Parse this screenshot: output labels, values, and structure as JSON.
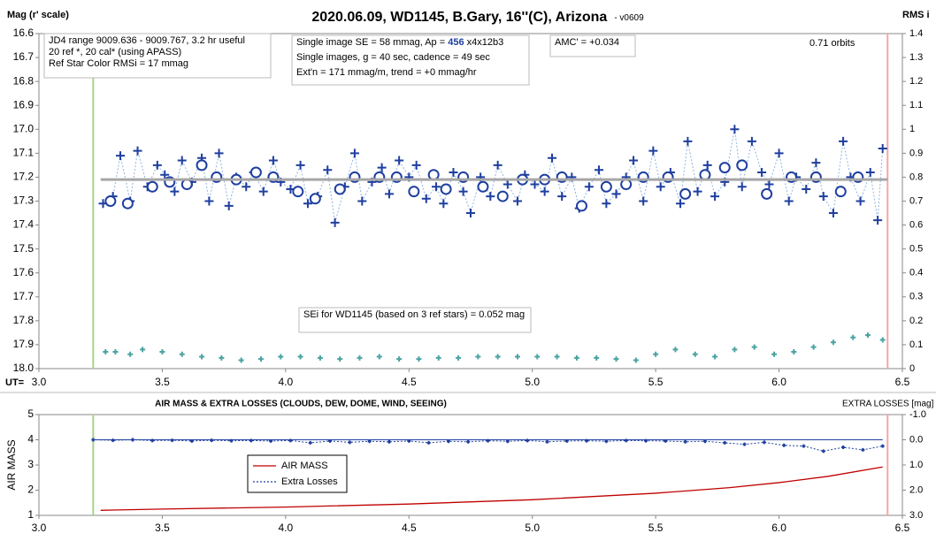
{
  "title": "2020.06.09, WD1145, B.Gary, 16''(C), Arizona",
  "version": "- v0609",
  "chart_data": [
    {
      "type": "scatter",
      "ylabel": "Mag (r' scale)",
      "y2label": "RMS i",
      "xlabel": "UT=",
      "xlim": [
        3.0,
        6.5
      ],
      "xticks": [
        {
          "value": 3.0,
          "label": "3.0"
        },
        {
          "value": 3.5,
          "label": "3.5"
        },
        {
          "value": 4.0,
          "label": "4.0"
        },
        {
          "value": 4.5,
          "label": "4.5"
        },
        {
          "value": 5.0,
          "label": "5.0"
        },
        {
          "value": 5.5,
          "label": "5.5"
        },
        {
          "value": 6.0,
          "label": "6.0"
        },
        {
          "value": 6.5,
          "label": "6.5"
        }
      ],
      "ylim": [
        18.0,
        16.6
      ],
      "yticks": [
        16.6,
        16.7,
        16.8,
        16.9,
        {
          "value": 17.0,
          "label": "17.0"
        },
        17.1,
        17.2,
        17.3,
        17.4,
        17.5,
        17.6,
        17.7,
        17.8,
        17.9,
        {
          "value": 18.0,
          "label": "18.0"
        }
      ],
      "y2lim": [
        0,
        1.4
      ],
      "y2ticks": [
        1.4,
        1.3,
        1.2,
        1.1,
        1,
        0.9,
        0.8,
        0.7,
        0.6,
        0.5,
        0.4,
        0.3,
        0.2,
        0.1,
        0
      ],
      "vlines": [
        {
          "x": 3.22,
          "color": "#a9d18e"
        },
        {
          "x": 6.44,
          "color": "#f4a6a6"
        }
      ],
      "series": [
        {
          "color": "#1f3f9f",
          "marker": "plus",
          "line": "dotted",
          "line_color": "#8fb4e0",
          "x": [
            3.26,
            3.3,
            3.33,
            3.37,
            3.4,
            3.44,
            3.48,
            3.51,
            3.55,
            3.58,
            3.62,
            3.66,
            3.69,
            3.73,
            3.77,
            3.8,
            3.84,
            3.87,
            3.91,
            3.95,
            3.98,
            4.02,
            4.06,
            4.09,
            4.13,
            4.17,
            4.2,
            4.24,
            4.28,
            4.31,
            4.35,
            4.39,
            4.42,
            4.46,
            4.5,
            4.53,
            4.57,
            4.61,
            4.64,
            4.68,
            4.72,
            4.75,
            4.79,
            4.83,
            4.86,
            4.9,
            4.94,
            4.97,
            5.01,
            5.05,
            5.08,
            5.12,
            5.16,
            5.19,
            5.23,
            5.27,
            5.3,
            5.34,
            5.38,
            5.41,
            5.45,
            5.49,
            5.52,
            5.56,
            5.6,
            5.63,
            5.67,
            5.71,
            5.74,
            5.78,
            5.82,
            5.85,
            5.89,
            5.93,
            5.96,
            6.0,
            6.04,
            6.07,
            6.11,
            6.15,
            6.18,
            6.22,
            6.26,
            6.29,
            6.33,
            6.37,
            6.4,
            6.42
          ],
          "values": [
            17.31,
            17.28,
            17.11,
            17.3,
            17.09,
            17.24,
            17.15,
            17.19,
            17.26,
            17.13,
            17.22,
            17.12,
            17.3,
            17.1,
            17.32,
            17.2,
            17.24,
            17.18,
            17.26,
            17.13,
            17.22,
            17.25,
            17.15,
            17.31,
            17.28,
            17.17,
            17.39,
            17.24,
            17.1,
            17.3,
            17.22,
            17.16,
            17.27,
            17.13,
            17.2,
            17.15,
            17.29,
            17.24,
            17.31,
            17.18,
            17.26,
            17.35,
            17.2,
            17.28,
            17.15,
            17.23,
            17.3,
            17.19,
            17.23,
            17.26,
            17.12,
            17.28,
            17.2,
            17.33,
            17.24,
            17.17,
            17.31,
            17.27,
            17.2,
            17.13,
            17.3,
            17.09,
            17.24,
            17.18,
            17.31,
            17.05,
            17.26,
            17.15,
            17.28,
            17.22,
            17.0,
            17.24,
            17.05,
            17.18,
            17.23,
            17.1,
            17.3,
            17.2,
            17.25,
            17.14,
            17.28,
            17.35,
            17.05,
            17.2,
            17.3,
            17.18,
            17.38,
            17.08
          ]
        },
        {
          "color": "#1f3f9f",
          "marker": "circle",
          "line": "none",
          "x": [
            3.29,
            3.36,
            3.46,
            3.53,
            3.6,
            3.66,
            3.72,
            3.8,
            3.88,
            3.95,
            4.05,
            4.12,
            4.22,
            4.28,
            4.38,
            4.45,
            4.52,
            4.6,
            4.65,
            4.72,
            4.8,
            4.88,
            4.96,
            5.05,
            5.12,
            5.2,
            5.3,
            5.38,
            5.45,
            5.55,
            5.62,
            5.7,
            5.78,
            5.85,
            5.95,
            6.05,
            6.15,
            6.25,
            6.32
          ],
          "values": [
            17.3,
            17.31,
            17.24,
            17.22,
            17.23,
            17.15,
            17.2,
            17.21,
            17.18,
            17.2,
            17.26,
            17.29,
            17.25,
            17.2,
            17.2,
            17.2,
            17.26,
            17.19,
            17.25,
            17.2,
            17.24,
            17.28,
            17.21,
            17.21,
            17.2,
            17.32,
            17.24,
            17.23,
            17.2,
            17.2,
            17.27,
            17.19,
            17.16,
            17.15,
            17.27,
            17.2,
            17.2,
            17.26,
            17.2
          ]
        },
        {
          "color": "#a6a6a6",
          "marker": "none",
          "line": "solid",
          "width": 3,
          "x": [
            3.25,
            6.44
          ],
          "values": [
            17.21,
            17.21
          ]
        },
        {
          "color": "#4aa3a3",
          "marker": "plus",
          "size": 3,
          "line": "none",
          "axis": "y2",
          "x": [
            3.27,
            3.31,
            3.37,
            3.42,
            3.5,
            3.58,
            3.66,
            3.74,
            3.82,
            3.9,
            3.98,
            4.06,
            4.14,
            4.22,
            4.3,
            4.38,
            4.46,
            4.54,
            4.62,
            4.7,
            4.78,
            4.86,
            4.94,
            5.02,
            5.1,
            5.18,
            5.26,
            5.34,
            5.42,
            5.5,
            5.58,
            5.66,
            5.74,
            5.82,
            5.9,
            5.98,
            6.06,
            6.14,
            6.22,
            6.3,
            6.36,
            6.42
          ],
          "values": [
            0.07,
            0.07,
            0.06,
            0.08,
            0.07,
            0.06,
            0.05,
            0.045,
            0.035,
            0.04,
            0.05,
            0.05,
            0.045,
            0.04,
            0.045,
            0.05,
            0.04,
            0.04,
            0.045,
            0.045,
            0.05,
            0.05,
            0.05,
            0.05,
            0.05,
            0.045,
            0.045,
            0.04,
            0.035,
            0.06,
            0.08,
            0.06,
            0.05,
            0.08,
            0.09,
            0.06,
            0.07,
            0.09,
            0.11,
            0.13,
            0.14,
            0.12
          ]
        }
      ],
      "annotations": [
        {
          "lines": [
            [
              "JD4 range 9009.636 - 9009.767, 3.2 hr useful"
            ],
            [
              " 20 ref *, 20 cal* (using APASS)"
            ],
            [
              "Ref Star Color RMSi = 17 mmag"
            ]
          ]
        },
        {
          "lines": [
            [
              "Single image SE = 58 mmag, Ap = ",
              "456",
              " x4x12b3"
            ],
            [
              "Single images, g = 40 sec, cadence = 49 sec"
            ],
            [
              "Ext'n = 171 mmag/m, trend = +0 mmag/hr"
            ]
          ]
        },
        {
          "lines": [
            [
              "AMC' = +0.034"
            ]
          ]
        },
        {
          "lines": [
            [
              "0.71 orbits"
            ]
          ]
        },
        {
          "lines": [
            [
              "SEi for WD1145 (based on 3 ref stars) = 0.052 mag"
            ]
          ]
        }
      ]
    },
    {
      "type": "line",
      "title": "AIR MASS & EXTRA LOSSES (CLOUDS, DEW, DOME, WIND, SEEING)",
      "ylabel": "AIR MASS",
      "y2label": "EXTRA LOSSES [mag]",
      "xlim": [
        3.0,
        6.5
      ],
      "xticks": [
        {
          "value": 3.0,
          "label": "3.0"
        },
        {
          "value": 3.5,
          "label": "3.5"
        },
        {
          "value": 4.0,
          "label": "4.0"
        },
        {
          "value": 4.5,
          "label": "4.5"
        },
        {
          "value": 5.0,
          "label": "5.0"
        },
        {
          "value": 5.5,
          "label": "5.5"
        },
        {
          "value": 6.0,
          "label": "6.0"
        },
        {
          "value": 6.5,
          "label": "6.5"
        }
      ],
      "ylim": [
        1,
        5
      ],
      "yticks": [
        1,
        2,
        3,
        4,
        5
      ],
      "y2lim": [
        3.0,
        -1.0
      ],
      "y2ticks": [
        {
          "value": -1.0,
          "label": "-1.0"
        },
        {
          "value": 0.0,
          "label": "0.0"
        },
        {
          "value": 1.0,
          "label": "1.0"
        },
        {
          "value": 2.0,
          "label": "2.0"
        },
        {
          "value": 3.0,
          "label": "3.0"
        }
      ],
      "vlines": [
        {
          "x": 3.22,
          "color": "#a9d18e"
        },
        {
          "x": 6.44,
          "color": "#f4a6a6"
        }
      ],
      "hlines": [
        {
          "value": 0,
          "axis": "y2",
          "x": [
            3.22,
            6.42
          ],
          "color": "#1f3f9f"
        }
      ],
      "series": [
        {
          "name": "AIR MASS",
          "color": "#c00000",
          "marker": "none",
          "line": "solid",
          "x": [
            3.25,
            3.5,
            4.0,
            4.5,
            5.0,
            5.5,
            5.8,
            6.0,
            6.2,
            6.42
          ],
          "values": [
            1.2,
            1.25,
            1.33,
            1.45,
            1.62,
            1.88,
            2.1,
            2.3,
            2.55,
            2.92
          ]
        },
        {
          "name": "Extra Losses",
          "color": "#1f3f9f",
          "marker": "plus",
          "size": 2,
          "line": "dotted",
          "axis": "y2",
          "x": [
            3.22,
            3.3,
            3.38,
            3.46,
            3.54,
            3.62,
            3.7,
            3.78,
            3.86,
            3.94,
            4.02,
            4.1,
            4.18,
            4.26,
            4.34,
            4.42,
            4.5,
            4.58,
            4.66,
            4.74,
            4.82,
            4.9,
            4.98,
            5.06,
            5.14,
            5.22,
            5.3,
            5.38,
            5.46,
            5.54,
            5.62,
            5.7,
            5.78,
            5.86,
            5.94,
            6.02,
            6.1,
            6.18,
            6.26,
            6.34,
            6.42
          ],
          "values": [
            0.0,
            0.02,
            0.0,
            0.03,
            0.02,
            0.05,
            0.02,
            0.04,
            0.03,
            0.05,
            0.03,
            0.12,
            0.05,
            0.1,
            0.06,
            0.08,
            0.05,
            0.12,
            0.06,
            0.08,
            0.04,
            0.06,
            0.03,
            0.08,
            0.05,
            0.04,
            0.06,
            0.03,
            0.04,
            0.05,
            0.08,
            0.06,
            0.12,
            0.18,
            0.1,
            0.22,
            0.25,
            0.45,
            0.3,
            0.4,
            0.25
          ]
        }
      ]
    }
  ]
}
